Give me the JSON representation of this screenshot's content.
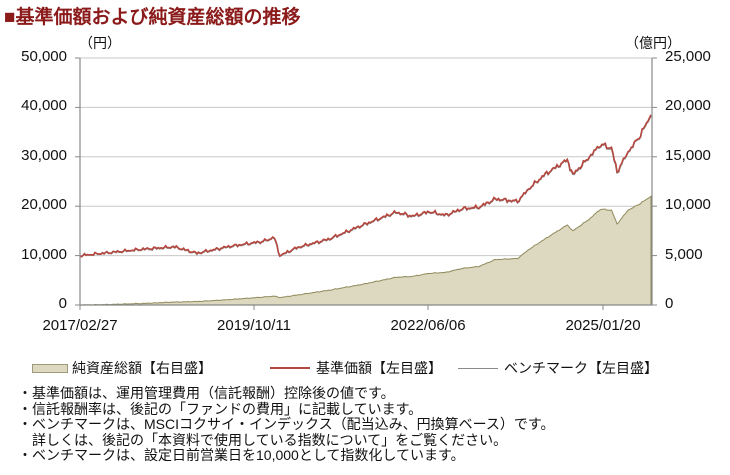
{
  "title": "■基準価額および純資産総額の推移",
  "axes": {
    "left_unit": "（円）",
    "right_unit": "（億円）",
    "left_ticks": [
      "50,000",
      "40,000",
      "30,000",
      "20,000",
      "10,000",
      "0"
    ],
    "right_ticks": [
      "25,000",
      "20,000",
      "15,000",
      "10,000",
      "5,000",
      "0"
    ],
    "x_ticks": [
      "2017/02/27",
      "2019/10/11",
      "2022/06/06",
      "2025/01/20"
    ]
  },
  "legend": {
    "items": [
      {
        "label": "純資産総額【右目盛】",
        "type": "area",
        "color": "#ddd8c0"
      },
      {
        "label": "基準価額【左目盛】",
        "type": "line",
        "color": "#b5473f"
      },
      {
        "label": "ベンチマーク【左目盛】",
        "type": "line",
        "color": "#8a8a8a"
      }
    ]
  },
  "notes": [
    "・基準価額は、運用管理費用（信託報酬）控除後の値です。",
    "・信託報酬率は、後記の「ファンドの費用」に記載しています。",
    "・ベンチマークは、MSCIコクサイ・インデックス（配当込み、円換算ベース）です。",
    "　詳しくは、後記の「本資料で使用している指数について」をご覧ください。",
    "・ベンチマークは、設定日前営業日を10,000として指数化しています。"
  ],
  "chart_data": {
    "type": "line",
    "title": "基準価額および純資産総額の推移",
    "xlabel": "",
    "ylabel_left": "円",
    "ylabel_right": "億円",
    "ylim_left": [
      0,
      50000
    ],
    "ylim_right": [
      0,
      25000
    ],
    "grid": true,
    "legend_position": "bottom",
    "x": [
      "2017/02",
      "2017/08",
      "2018/02",
      "2018/08",
      "2018/12",
      "2019/06",
      "2019/12",
      "2020/02",
      "2020/03",
      "2020/06",
      "2020/12",
      "2021/06",
      "2021/12",
      "2022/03",
      "2022/06",
      "2022/09",
      "2022/12",
      "2023/03",
      "2023/06",
      "2023/10",
      "2023/12",
      "2024/03",
      "2024/07",
      "2024/08",
      "2024/11",
      "2025/01",
      "2025/03",
      "2025/04",
      "2025/06",
      "2025/08",
      "2025/10"
    ],
    "series": [
      {
        "name": "基準価額【左目盛】",
        "axis": "left",
        "color": "#b5473f",
        "values": [
          10000,
          10600,
          11300,
          11800,
          10500,
          11900,
          12900,
          13700,
          10000,
          11600,
          13400,
          16200,
          18800,
          18000,
          18900,
          18200,
          19500,
          19800,
          21500,
          21000,
          23500,
          26500,
          29400,
          26400,
          30000,
          32500,
          31800,
          27000,
          31000,
          34000,
          38500
        ]
      },
      {
        "name": "ベンチマーク【左目盛】",
        "axis": "left",
        "color": "#8a8a8a",
        "values": [
          10000,
          10550,
          11200,
          11700,
          10400,
          11800,
          12800,
          13600,
          9900,
          11500,
          13300,
          16100,
          18700,
          17900,
          18800,
          18100,
          19400,
          19700,
          21400,
          20900,
          23400,
          26400,
          29300,
          26200,
          29900,
          32400,
          31600,
          26800,
          30900,
          33900,
          38300
        ]
      },
      {
        "name": "純資産総額【右目盛】",
        "axis": "right",
        "color": "#ddd8c0",
        "values": [
          0,
          50,
          150,
          300,
          350,
          550,
          800,
          900,
          750,
          1000,
          1500,
          2100,
          2800,
          2900,
          3200,
          3300,
          3700,
          3900,
          4600,
          4700,
          5600,
          6700,
          8100,
          7500,
          8700,
          9700,
          9600,
          8200,
          9600,
          10200,
          11000
        ]
      }
    ]
  }
}
